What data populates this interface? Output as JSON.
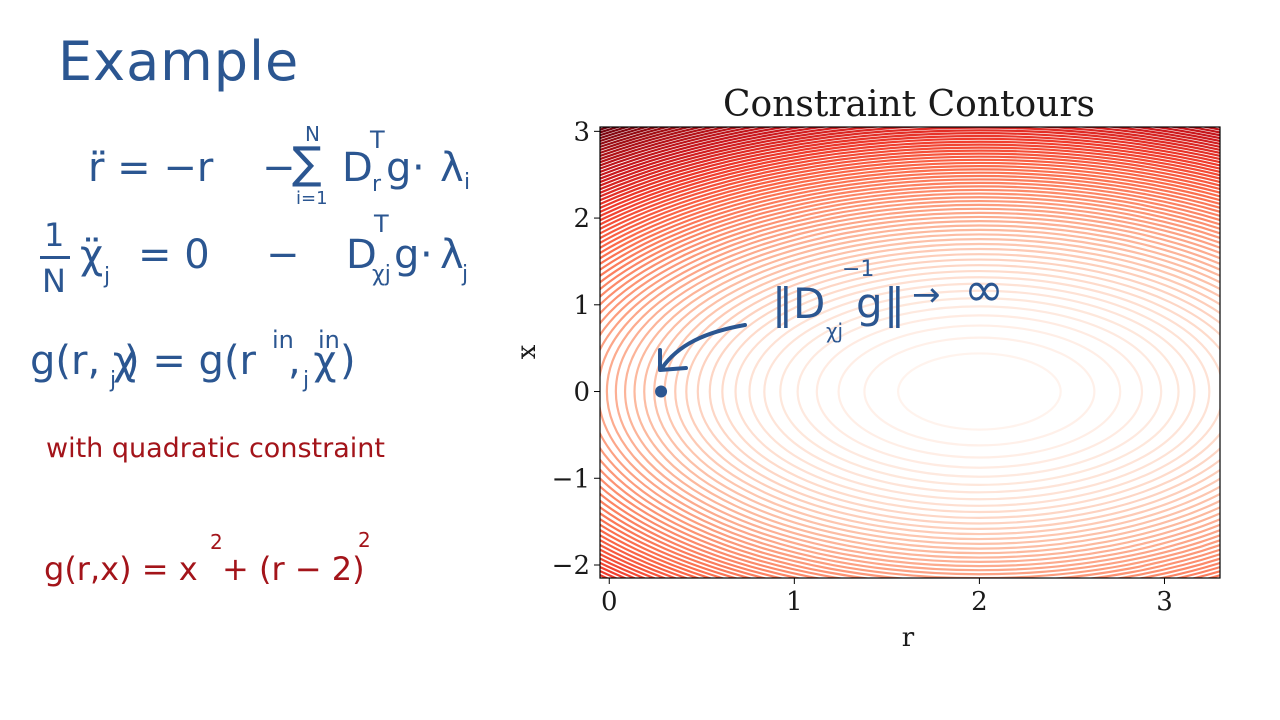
{
  "notes": {
    "title": "Example",
    "eq1": {
      "lhs": "r̈ = −r",
      "sum_top": "N",
      "sum_sym": "∑",
      "sum_bottom": "i=1",
      "term": "D",
      "term_sub": "r",
      "transpose": "T",
      "g": "g",
      "dot": "·",
      "lambda": "λ",
      "lambda_sub": "i"
    },
    "eq2": {
      "frac_num": "1",
      "frac_den": "N",
      "chi": "χ̈",
      "chi_sub": "j",
      "mid": "= 0",
      "minus": "−",
      "term": "D",
      "term_sub": "χj",
      "transpose": "T",
      "g": "g",
      "dot": "·",
      "lambda": "λ",
      "lambda_sub": "j"
    },
    "eq3": {
      "lhs": "g(r, χ",
      "lhs_sub": "j",
      "lhs_close": ") = g(r",
      "sup_in1": "in",
      "mid": ", χ",
      "sub_j": "j",
      "sup_in2": "in",
      "close": ")"
    },
    "quadratic_note": "with quadratic constraint",
    "eq4": {
      "lhs": "g(r,x) = x",
      "sq1": "2",
      "mid": " + (r − 2)",
      "sq2": "2"
    }
  },
  "annotation": {
    "norm_open": "‖D",
    "sub": "χj",
    "g": "g",
    "sup": "−1",
    "norm_close": "‖",
    "arrow": "→",
    "infinity": "∞"
  },
  "colors": {
    "ink_blue": "#2b5691",
    "ink_red": "#a3141a",
    "contour_dark": "#67000d",
    "contour_light": "#fff5f0"
  },
  "chart_data": {
    "type": "contour",
    "title": "Constraint Contours",
    "xlabel": "r",
    "ylabel": "x",
    "xlim": [
      -0.05,
      3.3
    ],
    "ylim": [
      -2.15,
      3.05
    ],
    "xticks": [
      0,
      1,
      2,
      3
    ],
    "xtick_labels": [
      "0",
      "1",
      "2",
      "3"
    ],
    "yticks": [
      -2,
      -1,
      0,
      1,
      2,
      3
    ],
    "ytick_labels": [
      "−2",
      "−1",
      "0",
      "1",
      "2",
      "3"
    ],
    "function": "g(r,x) = x^2 + (r-2)^2",
    "center": {
      "r": 2,
      "x": 0
    },
    "colormap": "Reds",
    "marked_point": {
      "r": 0.28,
      "x": 0
    }
  }
}
